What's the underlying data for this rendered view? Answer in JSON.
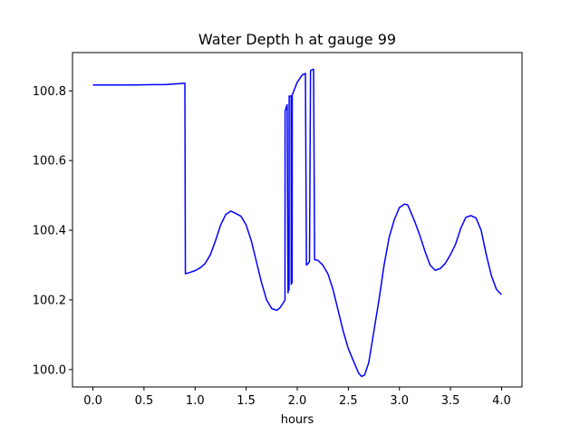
{
  "chart_data": {
    "type": "line",
    "title": "Water Depth h at gauge 99",
    "xlabel": "hours",
    "ylabel": "",
    "xlim": [
      -0.2,
      4.2
    ],
    "ylim": [
      99.95,
      100.91
    ],
    "x_ticks": [
      "0.0",
      "0.5",
      "1.0",
      "1.5",
      "2.0",
      "2.5",
      "3.0",
      "3.5",
      "4.0"
    ],
    "x_tick_values": [
      0,
      0.5,
      1.0,
      1.5,
      2.0,
      2.5,
      3.0,
      3.5,
      4.0
    ],
    "y_ticks": [
      "100.0",
      "100.2",
      "100.4",
      "100.6",
      "100.8"
    ],
    "y_tick_values": [
      100.0,
      100.2,
      100.4,
      100.6,
      100.8
    ],
    "grid": false,
    "series": [
      {
        "color": "#0000ff",
        "x": [
          0.0,
          0.2,
          0.4,
          0.6,
          0.7,
          0.8,
          0.9,
          0.905,
          0.95,
          1.0,
          1.05,
          1.1,
          1.15,
          1.2,
          1.25,
          1.3,
          1.35,
          1.4,
          1.45,
          1.5,
          1.55,
          1.6,
          1.65,
          1.7,
          1.75,
          1.8,
          1.83,
          1.86,
          1.88,
          1.881,
          1.9,
          1.901,
          1.91,
          1.911,
          1.92,
          1.921,
          1.94,
          1.941,
          1.95,
          1.951,
          1.96,
          2.0,
          2.05,
          2.08,
          2.09,
          2.1,
          2.12,
          2.13,
          2.14,
          2.16,
          2.17,
          2.2,
          2.25,
          2.3,
          2.35,
          2.4,
          2.45,
          2.5,
          2.55,
          2.6,
          2.63,
          2.66,
          2.7,
          2.75,
          2.8,
          2.85,
          2.9,
          2.95,
          3.0,
          3.05,
          3.08,
          3.1,
          3.15,
          3.2,
          3.25,
          3.3,
          3.35,
          3.4,
          3.45,
          3.5,
          3.55,
          3.6,
          3.65,
          3.7,
          3.75,
          3.8,
          3.85,
          3.9,
          3.95,
          4.0
        ],
        "y": [
          100.817,
          100.817,
          100.817,
          100.818,
          100.818,
          100.82,
          100.822,
          100.275,
          100.279,
          100.284,
          100.292,
          100.305,
          100.33,
          100.37,
          100.415,
          100.445,
          100.455,
          100.448,
          100.44,
          100.415,
          100.37,
          100.31,
          100.25,
          100.2,
          100.175,
          100.17,
          100.177,
          100.19,
          100.2,
          100.742,
          100.76,
          100.76,
          100.22,
          100.225,
          100.23,
          100.785,
          100.785,
          100.245,
          100.25,
          100.79,
          100.795,
          100.825,
          100.846,
          100.85,
          100.3,
          100.302,
          100.31,
          100.858,
          100.86,
          100.862,
          100.315,
          100.314,
          100.3,
          100.275,
          100.23,
          100.17,
          100.11,
          100.06,
          100.025,
          99.99,
          99.98,
          99.985,
          100.02,
          100.11,
          100.2,
          100.3,
          100.38,
          100.43,
          100.465,
          100.475,
          100.473,
          100.46,
          100.425,
          100.385,
          100.34,
          100.3,
          100.285,
          100.29,
          100.305,
          100.33,
          100.36,
          100.405,
          100.437,
          100.442,
          100.435,
          100.4,
          100.33,
          100.27,
          100.23,
          100.215
        ]
      }
    ]
  }
}
